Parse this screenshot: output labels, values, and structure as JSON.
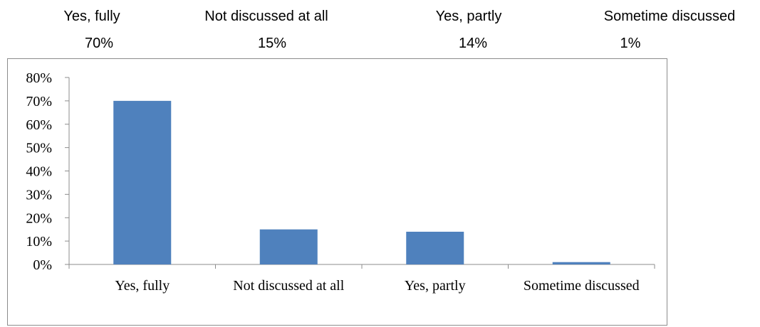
{
  "header": {
    "items": [
      {
        "label": "Yes, fully",
        "value": "70%"
      },
      {
        "label": "Not discussed at all",
        "value": "15%"
      },
      {
        "label": "Yes, partly",
        "value": "14%"
      },
      {
        "label": "Sometime discussed",
        "value": "1%"
      }
    ]
  },
  "chart_data": {
    "type": "bar",
    "categories": [
      "Yes, fully",
      "Not discussed at all",
      "Yes, partly",
      "Sometime discussed"
    ],
    "values": [
      70,
      15,
      14,
      1
    ],
    "yticks": [
      "0%",
      "10%",
      "20%",
      "30%",
      "40%",
      "50%",
      "60%",
      "70%",
      "80%"
    ],
    "ylim": [
      0,
      80
    ],
    "bar_color": "#4f81bd",
    "grid": false,
    "legend": "none"
  }
}
